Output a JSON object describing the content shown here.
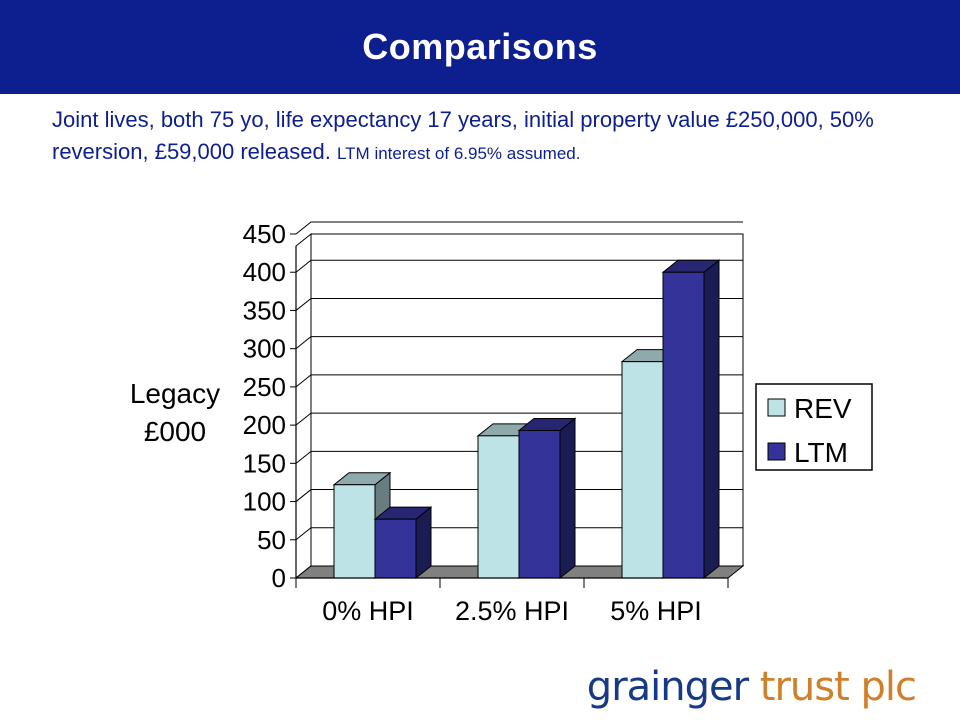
{
  "header": {
    "title": "Comparisons"
  },
  "subtitle": {
    "main": "Joint lives, both 75 yo, life expectancy 17 years, initial property value £250,000, 50% reversion, £59,000 released.",
    "note": "LTM interest of 6.95% assumed."
  },
  "brand": {
    "part1": "grainger",
    "part2": "trust plc",
    "color1": "#163a86",
    "color2": "#d0802a"
  },
  "chart_data": {
    "type": "bar",
    "style": "3d-clustered",
    "categories": [
      "0% HPI",
      "2.5% HPI",
      "5% HPI"
    ],
    "series": [
      {
        "name": "REV",
        "values": [
          122,
          186,
          283
        ],
        "color": "#bde3e6"
      },
      {
        "name": "LTM",
        "values": [
          77,
          193,
          400
        ],
        "color": "#333399"
      }
    ],
    "ylabel_lines": [
      "Legacy",
      "£000"
    ],
    "yticks": [
      0,
      50,
      100,
      150,
      200,
      250,
      300,
      350,
      400,
      450
    ],
    "ylim": [
      0,
      450
    ],
    "grid": true,
    "legend_position": "right"
  }
}
